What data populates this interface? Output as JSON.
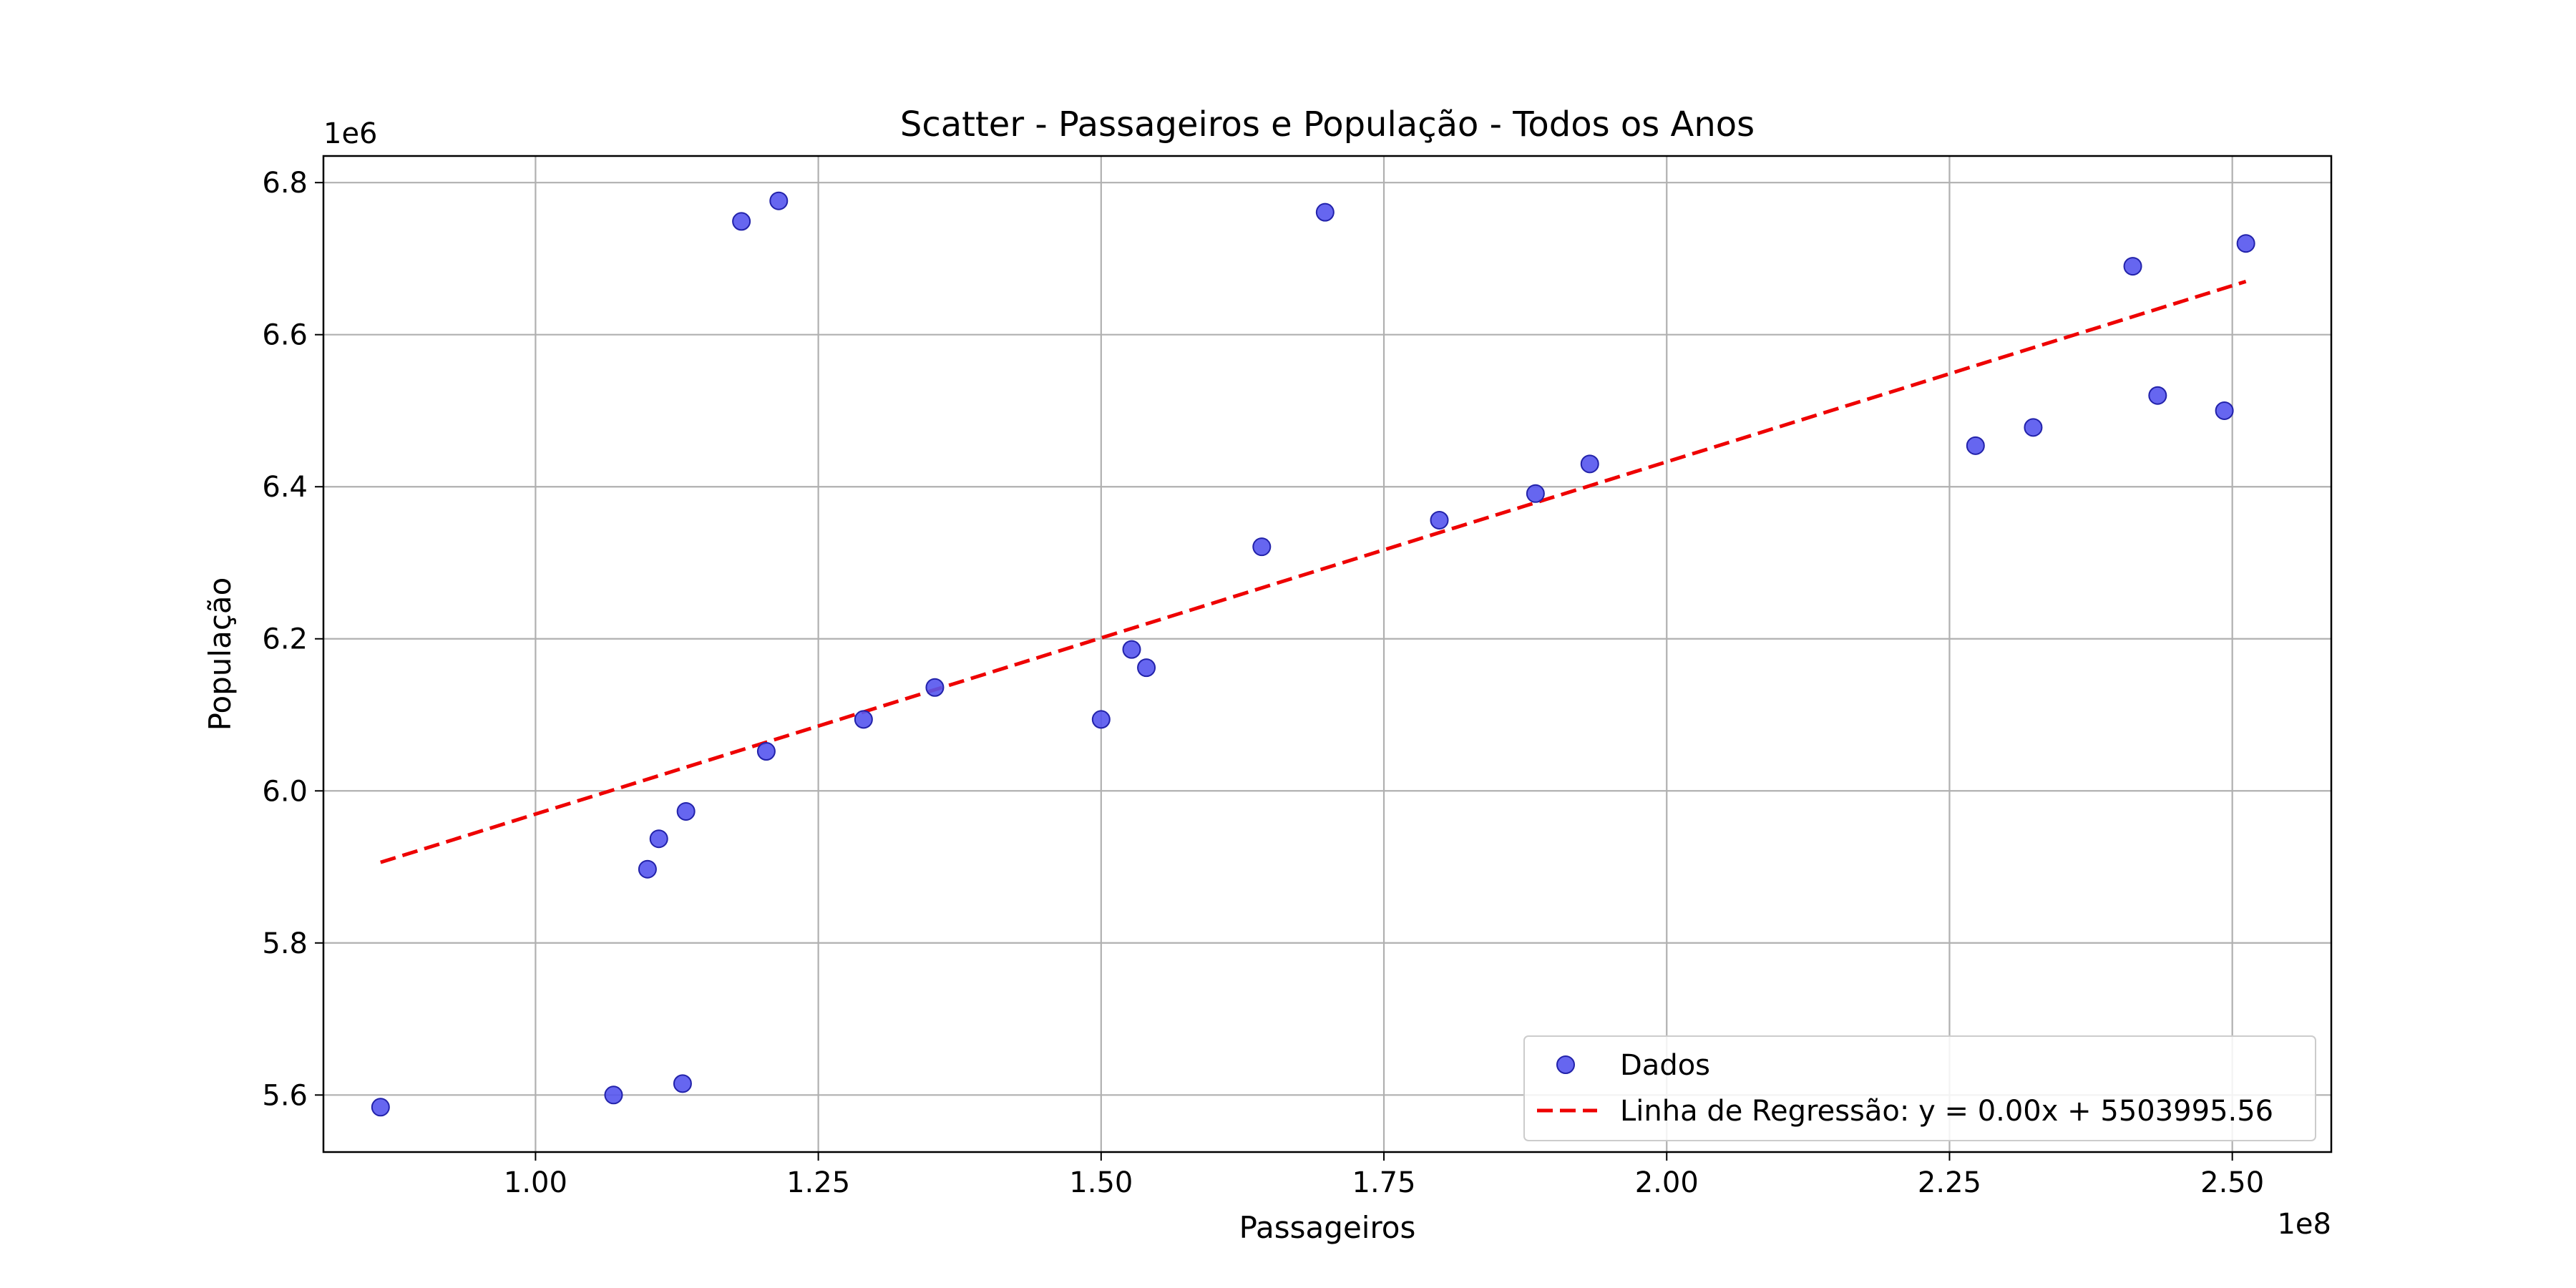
{
  "chart_data": {
    "type": "scatter",
    "title": "Scatter - Passageiros e População - Todos os Anos",
    "xlabel": "Passageiros",
    "ylabel": "População",
    "x_offset_label": "1e8",
    "y_offset_label": "1e6",
    "xlim": [
      0.8125,
      2.5875
    ],
    "ylim": [
      5.525,
      6.835
    ],
    "xticks": [
      1.0,
      1.25,
      1.5,
      1.75,
      2.0,
      2.25,
      2.5
    ],
    "xtick_labels": [
      "1.00",
      "1.25",
      "1.50",
      "1.75",
      "2.00",
      "2.25",
      "2.50"
    ],
    "yticks": [
      5.6,
      5.8,
      6.0,
      6.2,
      6.4,
      6.6,
      6.8
    ],
    "ytick_labels": [
      "5.6",
      "5.8",
      "6.0",
      "6.2",
      "6.4",
      "6.6",
      "6.8"
    ],
    "grid": true,
    "legend_position": "lower-right",
    "series": [
      {
        "name": "Dados",
        "kind": "scatter",
        "color": "#5555ee",
        "edge_color": "#2222aa",
        "points": [
          [
            0.863,
            5.584
          ],
          [
            1.069,
            5.6
          ],
          [
            1.13,
            5.615
          ],
          [
            1.099,
            5.897
          ],
          [
            1.109,
            5.937
          ],
          [
            1.133,
            5.973
          ],
          [
            1.204,
            6.052
          ],
          [
            1.29,
            6.094
          ],
          [
            1.353,
            6.136
          ],
          [
            1.182,
            6.749
          ],
          [
            1.215,
            6.776
          ],
          [
            1.5,
            6.094
          ],
          [
            1.527,
            6.186
          ],
          [
            1.54,
            6.162
          ],
          [
            1.642,
            6.321
          ],
          [
            1.698,
            6.761
          ],
          [
            1.799,
            6.356
          ],
          [
            1.884,
            6.391
          ],
          [
            1.932,
            6.43
          ],
          [
            2.273,
            6.454
          ],
          [
            2.324,
            6.478
          ],
          [
            2.412,
            6.69
          ],
          [
            2.434,
            6.52
          ],
          [
            2.493,
            6.5
          ],
          [
            2.512,
            6.72
          ]
        ]
      },
      {
        "name": "Linha de Regressão: y = 0.00x + 5503995.56",
        "kind": "line",
        "color": "#ee0000",
        "dash": "dashed",
        "x": [
          0.863,
          2.512
        ],
        "y": [
          5.906,
          6.67
        ]
      }
    ]
  }
}
